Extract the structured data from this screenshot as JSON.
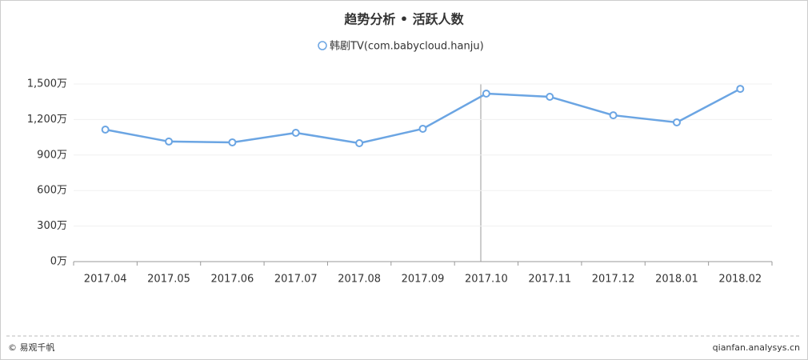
{
  "chart_data": {
    "type": "line",
    "title": "趋势分析 • 活跃人数",
    "categories": [
      "2017.04",
      "2017.05",
      "2017.06",
      "2017.07",
      "2017.08",
      "2017.09",
      "2017.10",
      "2017.11",
      "2017.12",
      "2018.01",
      "2018.02"
    ],
    "series": [
      {
        "name": "韩剧TV(com.babycloud.hanju)",
        "color": "#6ba5e3",
        "values": [
          1115,
          1014,
          1007,
          1088,
          1000,
          1122,
          1419,
          1392,
          1236,
          1176,
          1459
        ]
      }
    ],
    "ylim": [
      0,
      1500
    ],
    "yticks": [
      {
        "value": 0,
        "label": "0万"
      },
      {
        "value": 300,
        "label": "300万"
      },
      {
        "value": 600,
        "label": "600万"
      },
      {
        "value": 900,
        "label": "900万"
      },
      {
        "value": 1200,
        "label": "1,200万"
      },
      {
        "value": 1500,
        "label": "1,500万"
      }
    ],
    "grid": true
  },
  "footer": {
    "left": "© 易观千帆",
    "right": "qianfan.analysys.cn"
  }
}
